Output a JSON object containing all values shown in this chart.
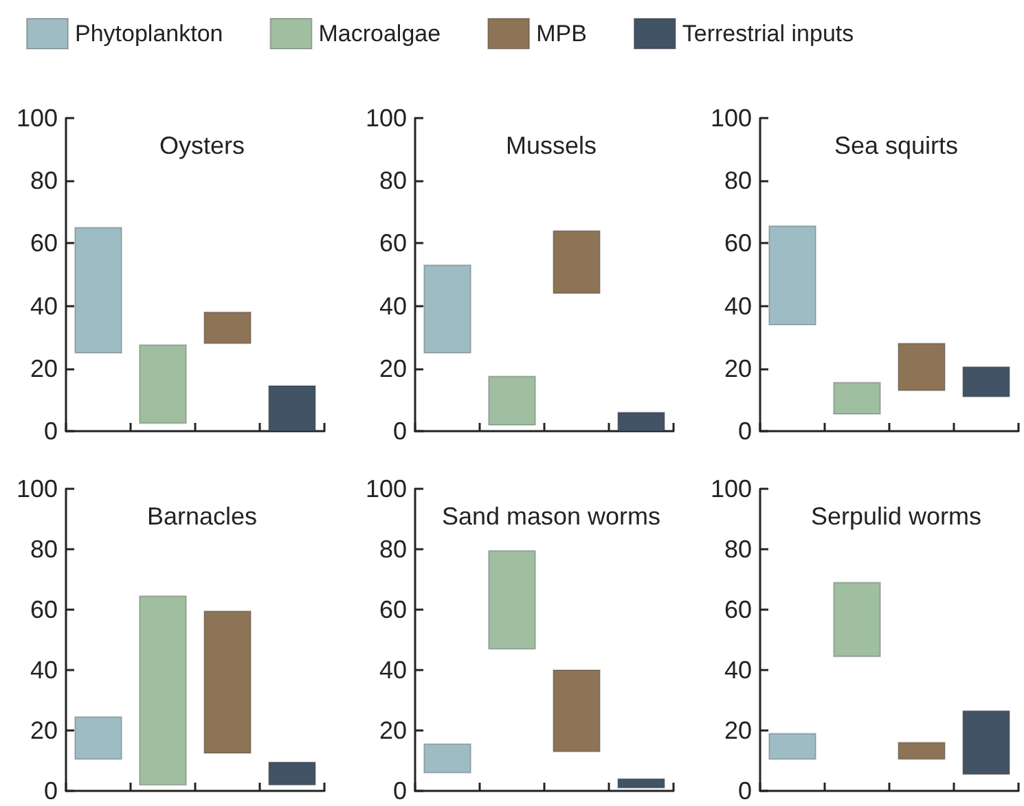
{
  "chart_data": [
    {
      "type": "bar",
      "title": "Oysters",
      "categories": [
        null,
        null,
        null,
        null
      ],
      "ylim": [
        0,
        100
      ],
      "yticks": [
        0,
        20,
        40,
        60,
        80,
        100
      ],
      "legend": "top",
      "series": [
        {
          "name": "Phytoplankton",
          "color": "#9dbcc4",
          "base": [
            25,
            null,
            null,
            null
          ],
          "values": [
            40,
            null,
            null,
            null
          ]
        },
        {
          "name": "Macroalgae",
          "color": "#9fbfa0",
          "base": [
            null,
            2.5,
            null,
            null
          ],
          "values": [
            null,
            25,
            null,
            null
          ]
        },
        {
          "name": "MPB",
          "color": "#8e7457",
          "base": [
            null,
            null,
            28,
            null
          ],
          "values": [
            null,
            null,
            10,
            null
          ]
        },
        {
          "name": "Terrestrial inputs",
          "color": "#435366",
          "base": [
            null,
            null,
            null,
            0
          ],
          "values": [
            null,
            null,
            null,
            14.5
          ]
        }
      ]
    },
    {
      "type": "bar",
      "title": "Mussels",
      "categories": [
        null,
        null,
        null,
        null
      ],
      "ylim": [
        0,
        100
      ],
      "yticks": [
        0,
        20,
        40,
        60,
        80,
        100
      ],
      "series": [
        {
          "color": "#9dbcc4",
          "base": [
            25,
            null,
            null,
            null
          ],
          "values": [
            28,
            null,
            null,
            null
          ]
        },
        {
          "color": "#9fbfa0",
          "base": [
            null,
            2,
            null,
            null
          ],
          "values": [
            null,
            15.5,
            null,
            null
          ]
        },
        {
          "color": "#8e7457",
          "base": [
            null,
            null,
            44,
            null
          ],
          "values": [
            null,
            null,
            20,
            null
          ]
        },
        {
          "color": "#435366",
          "base": [
            null,
            null,
            null,
            0
          ],
          "values": [
            null,
            null,
            null,
            6
          ]
        }
      ]
    },
    {
      "type": "bar",
      "title": "Sea squirts",
      "categories": [
        null,
        null,
        null,
        null
      ],
      "ylim": [
        0,
        100
      ],
      "yticks": [
        0,
        20,
        40,
        60,
        80,
        100
      ],
      "series": [
        {
          "color": "#9dbcc4",
          "base": [
            34,
            null,
            null,
            null
          ],
          "values": [
            31.5,
            null,
            null,
            null
          ]
        },
        {
          "color": "#9fbfa0",
          "base": [
            null,
            5.5,
            null,
            null
          ],
          "values": [
            null,
            10,
            null,
            null
          ]
        },
        {
          "color": "#8e7457",
          "base": [
            null,
            null,
            13,
            null
          ],
          "values": [
            null,
            null,
            15,
            null
          ]
        },
        {
          "color": "#435366",
          "base": [
            null,
            null,
            null,
            11
          ],
          "values": [
            null,
            null,
            null,
            9.5
          ]
        }
      ]
    },
    {
      "type": "bar",
      "title": "Barnacles",
      "categories": [
        null,
        null,
        null,
        null
      ],
      "ylim": [
        0,
        100
      ],
      "yticks": [
        0,
        20,
        40,
        60,
        80,
        100
      ],
      "series": [
        {
          "color": "#9dbcc4",
          "base": [
            10.5,
            null,
            null,
            null
          ],
          "values": [
            14,
            null,
            null,
            null
          ]
        },
        {
          "color": "#9fbfa0",
          "base": [
            null,
            2,
            null,
            null
          ],
          "values": [
            null,
            62.5,
            null,
            null
          ]
        },
        {
          "color": "#8e7457",
          "base": [
            null,
            null,
            12.5,
            null
          ],
          "values": [
            null,
            null,
            47,
            null
          ]
        },
        {
          "color": "#435366",
          "base": [
            null,
            null,
            null,
            2
          ],
          "values": [
            null,
            null,
            null,
            7.5
          ]
        }
      ]
    },
    {
      "type": "bar",
      "title": "Sand mason worms",
      "categories": [
        null,
        null,
        null,
        null
      ],
      "ylim": [
        0,
        100
      ],
      "yticks": [
        0,
        20,
        40,
        60,
        80,
        100
      ],
      "series": [
        {
          "color": "#9dbcc4",
          "base": [
            6,
            null,
            null,
            null
          ],
          "values": [
            9.5,
            null,
            null,
            null
          ]
        },
        {
          "color": "#9fbfa0",
          "base": [
            null,
            47,
            null,
            null
          ],
          "values": [
            null,
            32.5,
            null,
            null
          ]
        },
        {
          "color": "#8e7457",
          "base": [
            null,
            null,
            13,
            null
          ],
          "values": [
            null,
            null,
            27,
            null
          ]
        },
        {
          "color": "#435366",
          "base": [
            null,
            null,
            null,
            1
          ],
          "values": [
            null,
            null,
            null,
            3
          ]
        }
      ]
    },
    {
      "type": "bar",
      "title": "Serpulid worms",
      "categories": [
        null,
        null,
        null,
        null
      ],
      "ylim": [
        0,
        100
      ],
      "yticks": [
        0,
        20,
        40,
        60,
        80,
        100
      ],
      "series": [
        {
          "color": "#9dbcc4",
          "base": [
            10.5,
            null,
            null,
            null
          ],
          "values": [
            8.5,
            null,
            null,
            null
          ]
        },
        {
          "color": "#9fbfa0",
          "base": [
            null,
            44.5,
            null,
            null
          ],
          "values": [
            null,
            24.5,
            null,
            null
          ]
        },
        {
          "color": "#8e7457",
          "base": [
            null,
            null,
            10.5,
            null
          ],
          "values": [
            null,
            null,
            5.5,
            null
          ]
        },
        {
          "color": "#435366",
          "base": [
            null,
            null,
            null,
            5.5
          ],
          "values": [
            null,
            null,
            null,
            21
          ]
        }
      ]
    }
  ]
}
